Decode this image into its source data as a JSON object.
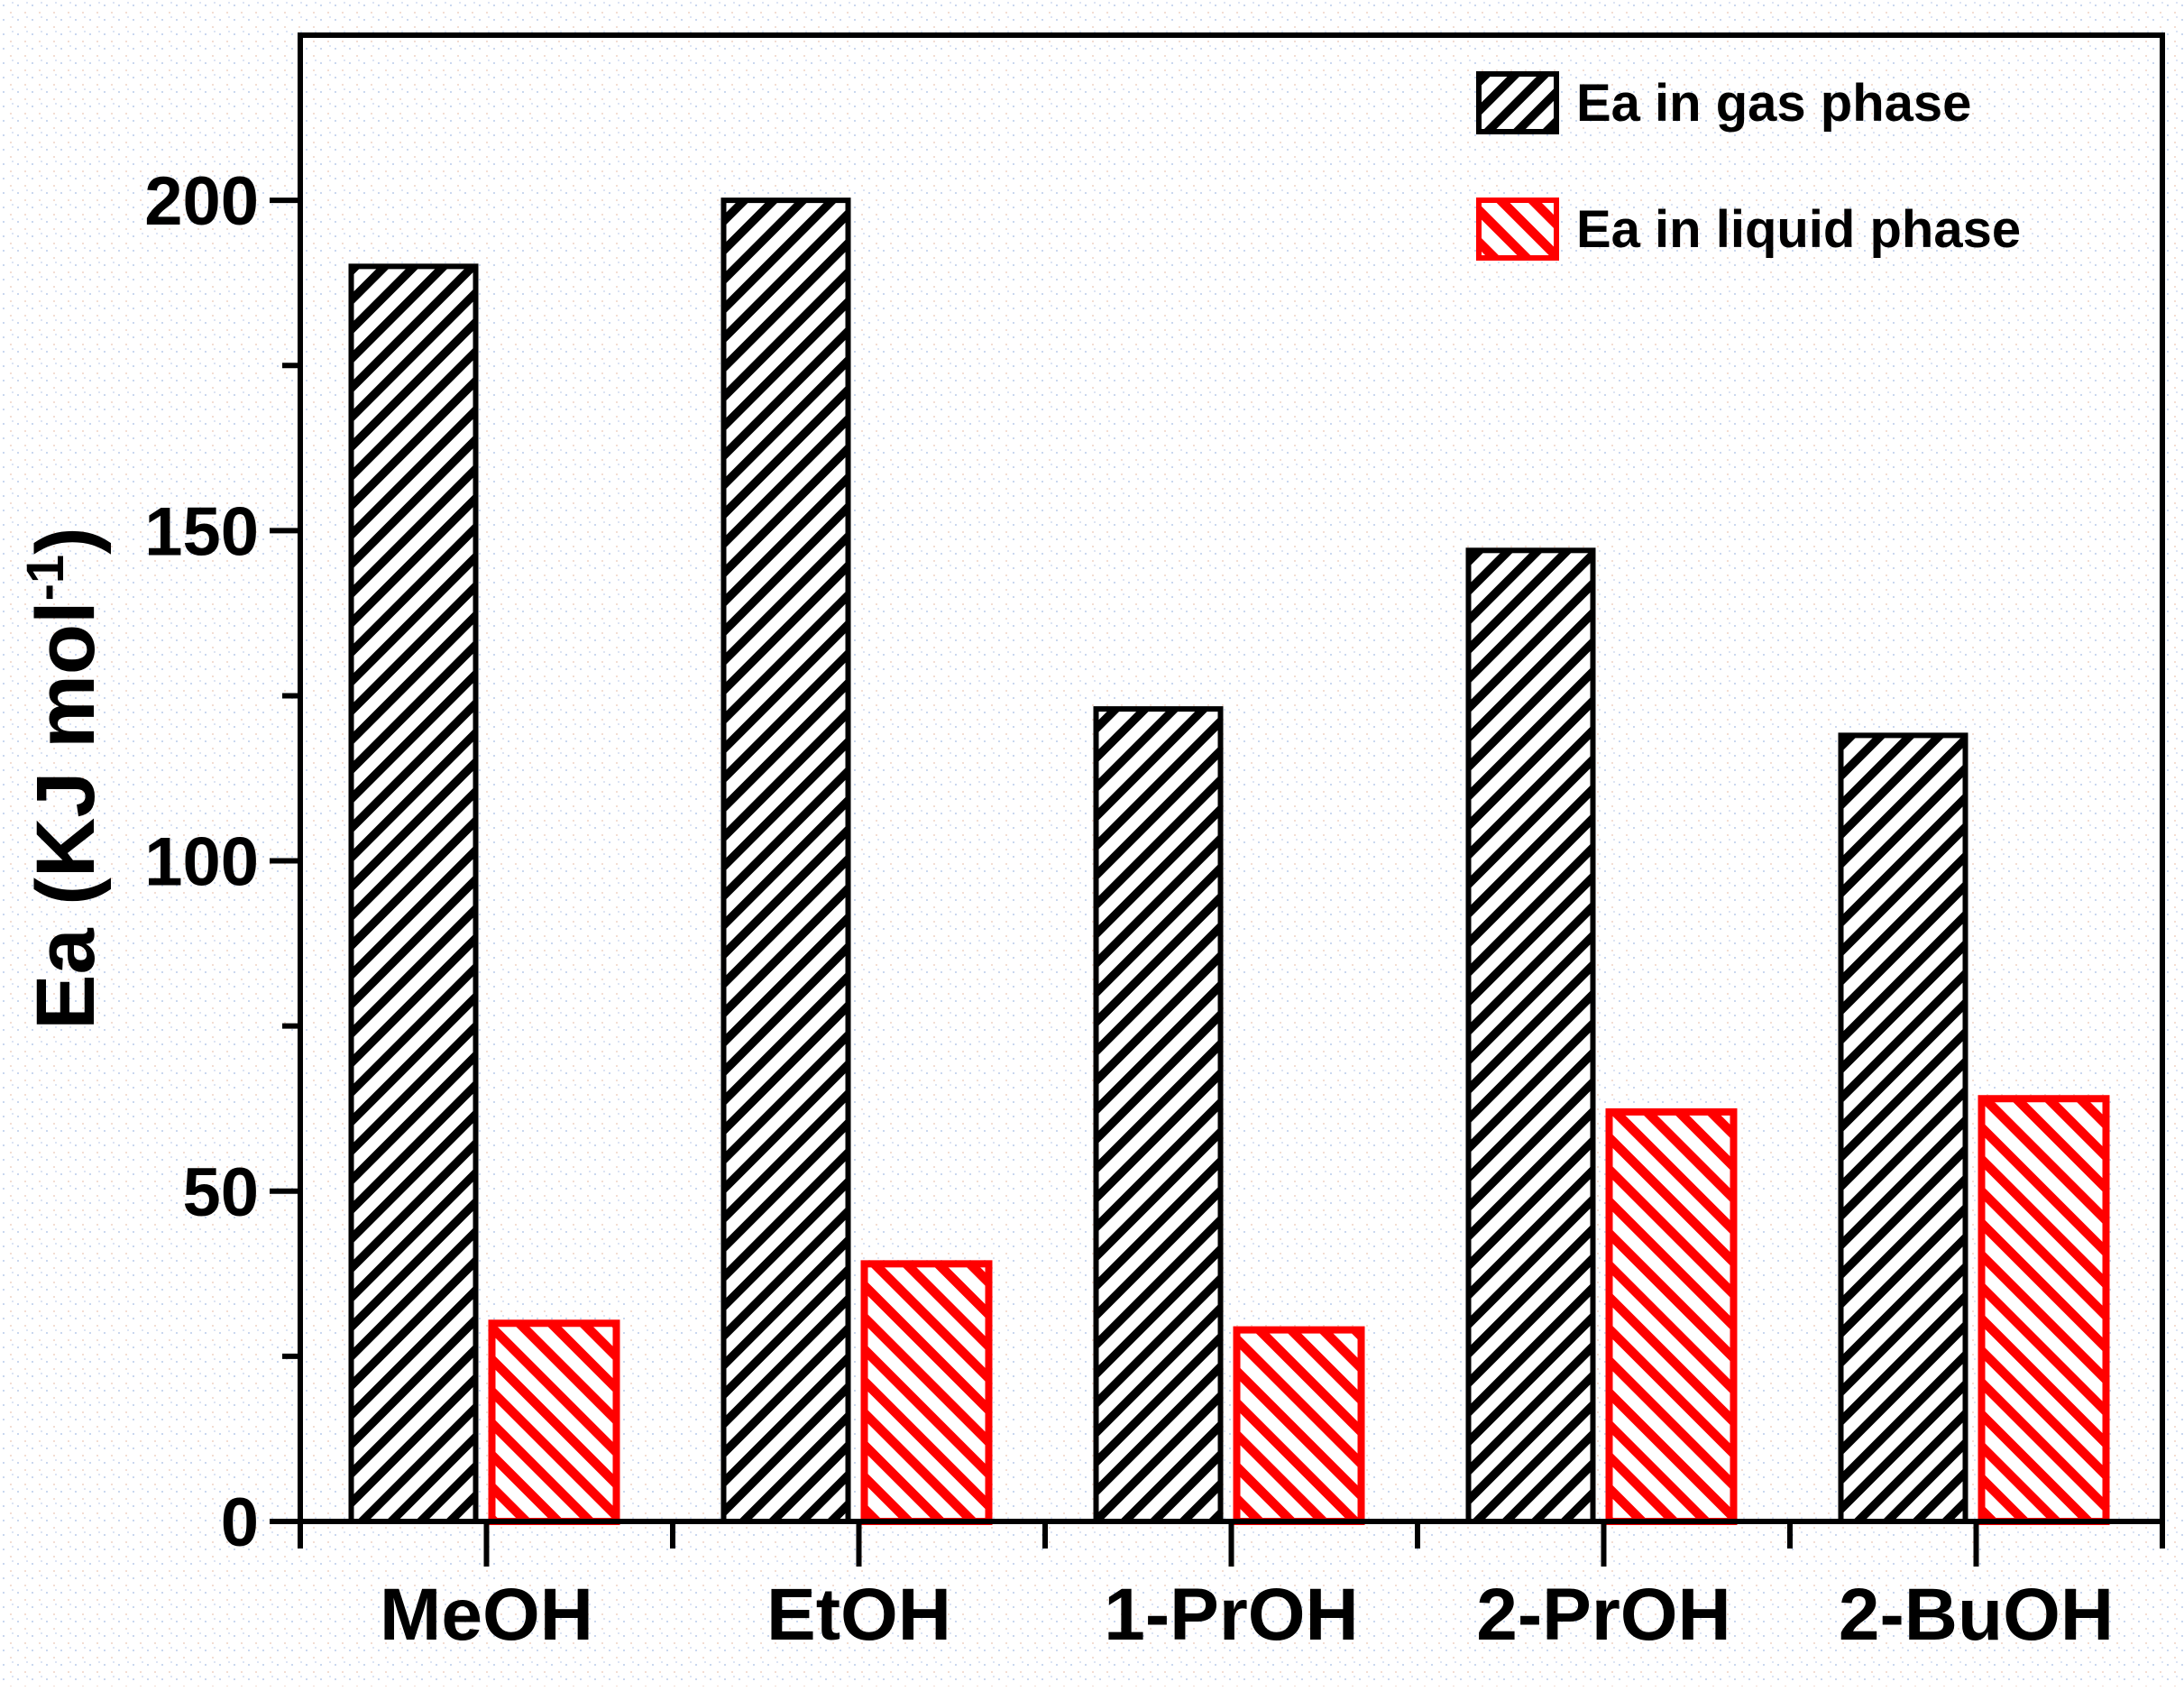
{
  "figure": {
    "ylabel_parts": {
      "main": "Ea (KJ mol",
      "sup": "-1",
      "end": ")"
    },
    "legend": {
      "gas_label": "Ea in gas phase",
      "liquid_label": "Ea in liquid phase"
    }
  },
  "chart_data": {
    "type": "bar",
    "categories": [
      "MeOH",
      "EtOH",
      "1-PrOH",
      "2-PrOH",
      "2-BuOH"
    ],
    "series": [
      {
        "name": "Ea in gas phase",
        "color": "#000000",
        "hatch": "/",
        "values": [
          190,
          200,
          123,
          147,
          119
        ]
      },
      {
        "name": "Ea in liquid phase",
        "color": "#ff0000",
        "hatch": "\\",
        "values": [
          30,
          39,
          29,
          62,
          64
        ]
      }
    ],
    "title": "",
    "xlabel": "",
    "ylabel": "Ea (KJ mol⁻¹)",
    "ylim": [
      0,
      225
    ],
    "yticks": [
      0,
      50,
      100,
      150,
      200
    ],
    "ytick_minor_step": 25,
    "xtick_minor_at_boundaries": true,
    "grid": false,
    "legend_position": "upper right",
    "background": "#ffffff"
  }
}
